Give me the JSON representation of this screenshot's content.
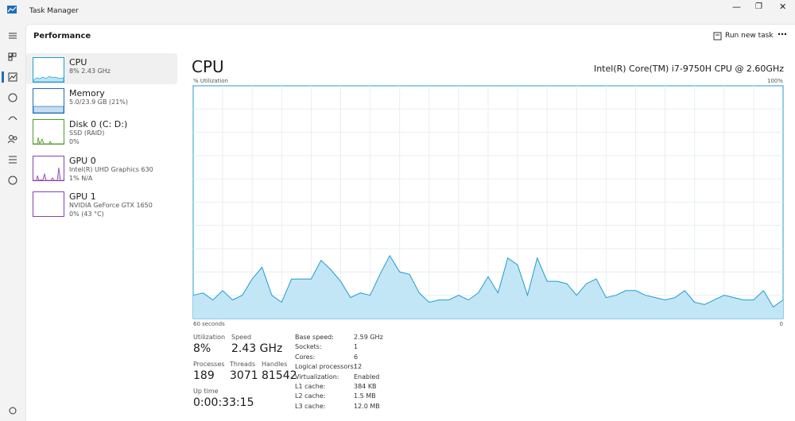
{
  "window": {
    "title": "Task Manager"
  },
  "header": {
    "section": "Performance",
    "run_new_task": "Run new task"
  },
  "sidebar": [
    {
      "name": "CPU",
      "lines": [
        "8% 2.43 GHz"
      ]
    },
    {
      "name": "Memory",
      "lines": [
        "5.0/23.9 GB (21%)"
      ]
    },
    {
      "name": "Disk 0 (C: D:)",
      "lines": [
        "SSD (RAID)",
        "0%"
      ]
    },
    {
      "name": "GPU 0",
      "lines": [
        "Intel(R) UHD Graphics 630",
        "1% N/A"
      ]
    },
    {
      "name": "GPU 1",
      "lines": [
        "NVIDIA GeForce GTX 1650",
        "0% (43 °C)"
      ]
    }
  ],
  "main": {
    "title": "CPU",
    "processor": "Intel(R) Core(TM) i7-9750H CPU @ 2.60GHz"
  },
  "chart_data": {
    "type": "area",
    "y_label": "% Utilization",
    "color": "#1f9bd1",
    "x": [
      60,
      59,
      58,
      57,
      56,
      55,
      54,
      53,
      52,
      51,
      50,
      49,
      48,
      47,
      46,
      45,
      44,
      43,
      42,
      41,
      40,
      39,
      38,
      37,
      36,
      35,
      34,
      33,
      32,
      31,
      30,
      29,
      28,
      27,
      26,
      25,
      24,
      23,
      22,
      21,
      20,
      19,
      18,
      17,
      16,
      15,
      14,
      13,
      12,
      11,
      10,
      9,
      8,
      7,
      6,
      5,
      4,
      3,
      2,
      1,
      0
    ],
    "values": [
      10,
      11,
      8,
      12,
      8,
      10,
      17,
      22,
      10,
      7,
      17,
      17,
      17,
      25,
      21,
      16,
      9,
      11,
      10,
      19,
      27,
      20,
      19,
      11,
      7,
      8,
      8,
      10,
      8,
      11,
      18,
      11,
      26,
      23,
      10,
      26,
      16,
      16,
      15,
      10,
      15,
      17,
      9,
      10,
      12,
      12,
      10,
      9,
      8,
      9,
      12,
      7,
      6,
      8,
      10,
      9,
      8,
      8,
      12,
      5,
      8
    ],
    "xlim": [
      60,
      0
    ],
    "xticks": [
      {
        "value": 60,
        "label": "60 seconds"
      },
      0
    ],
    "ylim": [
      0,
      100
    ],
    "yticks": [
      {
        "value": 100,
        "label": "100%"
      }
    ]
  },
  "stats": [
    {
      "label": "Utilization",
      "value": "8%"
    },
    {
      "label": "Speed",
      "value": "2.43 GHz"
    },
    {
      "label": "Processes",
      "value": "189"
    },
    {
      "label": "Threads",
      "value": "3071"
    },
    {
      "label": "Handles",
      "value": "81542"
    },
    {
      "label": "Up time",
      "value": "0:00:33:15"
    }
  ],
  "specs": [
    [
      "Base speed:",
      "2.59 GHz"
    ],
    [
      "Sockets:",
      "1"
    ],
    [
      "Cores:",
      "6"
    ],
    [
      "Logical processors:",
      "12"
    ],
    [
      "Virtualization:",
      "Enabled"
    ],
    [
      "L1 cache:",
      "384 KB"
    ],
    [
      "L2 cache:",
      "1.5 MB"
    ],
    [
      "L3 cache:",
      "12.0 MB"
    ]
  ]
}
